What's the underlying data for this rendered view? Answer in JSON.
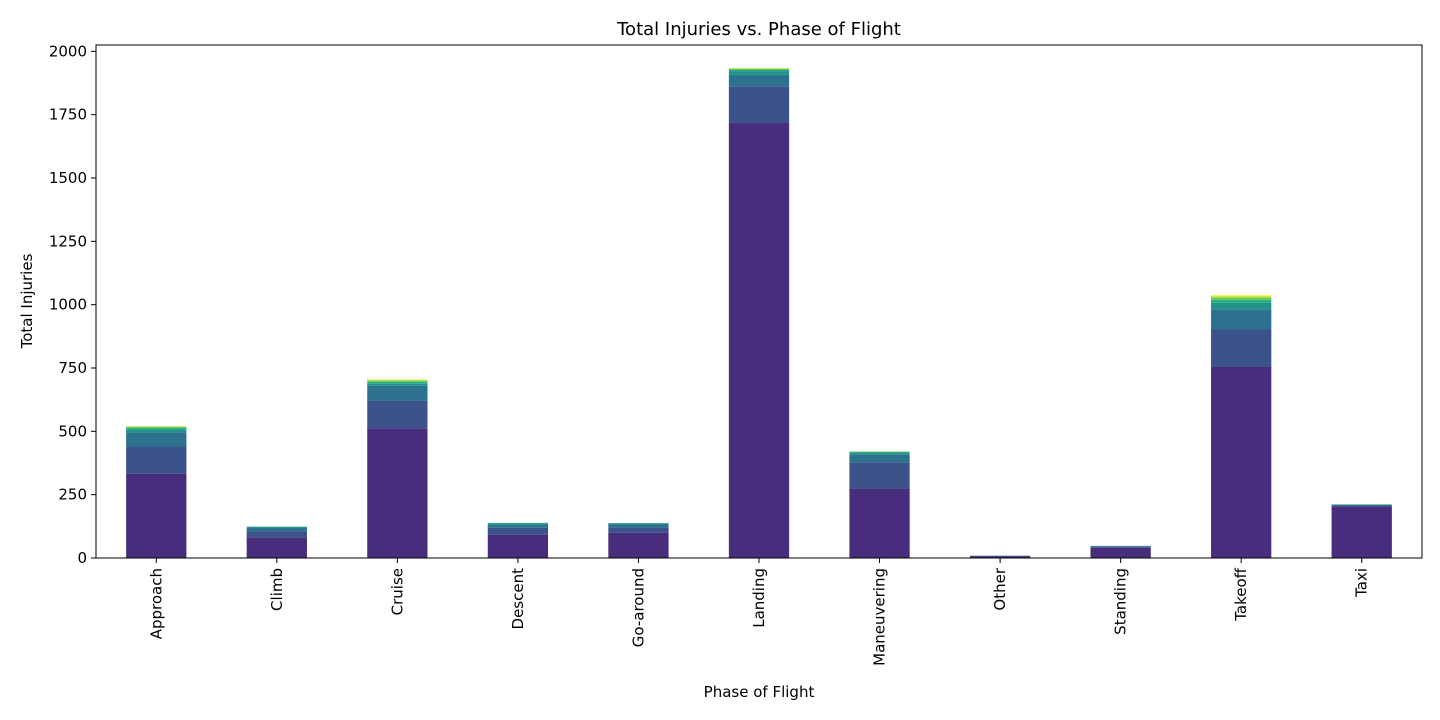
{
  "chart_data": {
    "type": "bar",
    "stacked": true,
    "title": "Total Injuries vs. Phase of Flight",
    "xlabel": "Phase of Flight",
    "ylabel": "Total Injuries",
    "ylim": [
      0,
      2025
    ],
    "yticks": [
      0,
      250,
      500,
      750,
      1000,
      1250,
      1500,
      1750,
      2000
    ],
    "grid": false,
    "legend": "none",
    "categories": [
      "Approach",
      "Climb",
      "Cruise",
      "Descent",
      "Go-around",
      "Landing",
      "Maneuvering",
      "Other",
      "Standing",
      "Takeoff",
      "Taxi"
    ],
    "series": [
      {
        "color": "#472d7b",
        "values": [
          333,
          82,
          512,
          92,
          100,
          1717,
          274,
          6,
          40,
          754,
          203
        ]
      },
      {
        "color": "#3b528b",
        "values": [
          107,
          23,
          108,
          27,
          20,
          145,
          104,
          2,
          5,
          148,
          4
        ]
      },
      {
        "color": "#2c728e",
        "values": [
          55,
          15,
          60,
          13,
          14,
          45,
          30,
          1,
          2,
          80,
          3
        ]
      },
      {
        "color": "#21918c",
        "values": [
          12,
          3,
          8,
          4,
          3,
          15,
          8,
          0,
          1,
          25,
          1
        ]
      },
      {
        "color": "#28ae80",
        "values": [
          7,
          1,
          7,
          2,
          1,
          6,
          3,
          0,
          0,
          12,
          1
        ]
      },
      {
        "color": "#5ec962",
        "values": [
          3,
          0,
          5,
          1,
          0,
          3,
          1,
          0,
          0,
          8,
          0
        ]
      },
      {
        "color": "#addc30",
        "values": [
          2,
          0,
          3,
          0,
          0,
          2,
          1,
          0,
          0,
          6,
          0
        ]
      },
      {
        "color": "#fde725",
        "values": [
          1,
          0,
          2,
          0,
          0,
          1,
          0,
          0,
          0,
          4,
          0
        ]
      }
    ]
  }
}
